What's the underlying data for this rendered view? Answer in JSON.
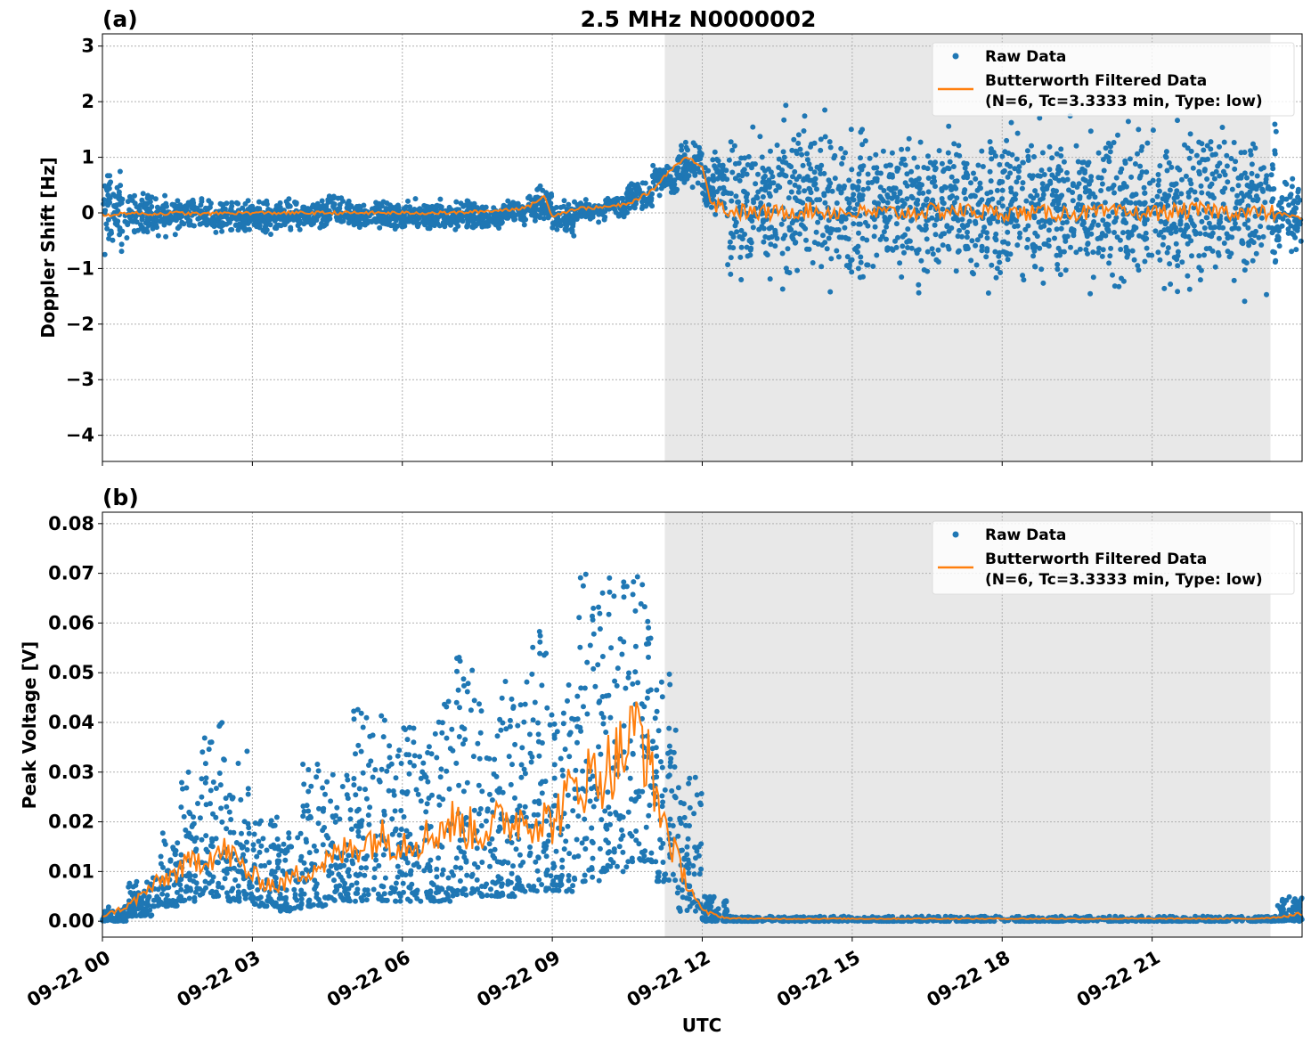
{
  "chart_data": [
    {
      "type": "scatter",
      "panel_label": "(a)",
      "title": "2.5 MHz N0000002",
      "ylabel": "Doppler Shift [Hz]",
      "xlabel": "",
      "xlim": [
        "09-22 00:00",
        "09-23 00:00"
      ],
      "ylim": [
        -4.47,
        3.22
      ],
      "yticks": [
        "3",
        "2",
        "1",
        "0",
        "−1",
        "−2",
        "−3",
        "−4"
      ],
      "ytick_values": [
        3,
        2,
        1,
        0,
        -1,
        -2,
        -3,
        -4
      ],
      "grid": true,
      "legend": {
        "placement": "top-right",
        "entries": [
          "Raw Data",
          "Butterworth Filtered Data",
          "(N=6, Tc=3.3333 min, Type: low)"
        ]
      },
      "shaded_span": [
        "09-22 11:15",
        "09-22 23:22"
      ],
      "series": [
        {
          "name": "Raw Data",
          "color": "#1f77b4",
          "kind": "points",
          "x": [
            "00:00",
            "00:30",
            "01:00",
            "01:30",
            "02:00",
            "02:30",
            "03:00",
            "03:30",
            "04:00",
            "04:30",
            "05:00",
            "05:30",
            "06:00",
            "06:30",
            "07:00",
            "07:30",
            "08:00",
            "08:30",
            "09:00",
            "09:30",
            "10:00",
            "10:30",
            "11:00",
            "11:30",
            "12:00",
            "12:30",
            "13:00",
            "13:30",
            "14:00",
            "14:30",
            "15:00",
            "15:30",
            "16:00",
            "16:30",
            "17:00",
            "17:30",
            "18:00",
            "18:30",
            "19:00",
            "19:30",
            "20:00",
            "20:30",
            "21:00",
            "21:30",
            "22:00",
            "22:30",
            "23:00",
            "23:30"
          ],
          "low": [
            -1.0,
            -0.5,
            -0.5,
            -0.4,
            -0.4,
            -0.4,
            -0.5,
            -0.4,
            -0.4,
            -0.4,
            -0.4,
            -0.4,
            -0.4,
            -0.4,
            -0.4,
            -0.4,
            -0.3,
            -0.3,
            -0.5,
            -0.2,
            -0.2,
            0.0,
            0.2,
            0.4,
            -0.3,
            -1.6,
            -1.7,
            -1.8,
            -1.7,
            -1.8,
            -1.7,
            -1.7,
            -1.7,
            -1.7,
            -1.8,
            -1.8,
            -1.8,
            -1.8,
            -1.9,
            -1.7,
            -1.8,
            -1.8,
            -1.7,
            -1.7,
            -1.7,
            -1.7,
            -1.6,
            -1.0
          ],
          "high": [
            1.0,
            0.5,
            0.4,
            0.4,
            0.3,
            0.3,
            0.3,
            0.3,
            0.3,
            0.4,
            0.3,
            0.3,
            0.3,
            0.3,
            0.3,
            0.3,
            0.3,
            0.6,
            0.3,
            0.3,
            0.4,
            0.6,
            1.0,
            1.4,
            1.4,
            1.8,
            1.9,
            2.2,
            2.2,
            1.9,
            2.0,
            2.0,
            2.0,
            1.9,
            1.9,
            2.0,
            2.0,
            2.0,
            2.0,
            1.9,
            2.0,
            1.9,
            1.9,
            1.9,
            2.0,
            1.9,
            1.8,
            0.9
          ]
        },
        {
          "name": "Butterworth Filtered Data",
          "color": "#ff7f0e",
          "kind": "line",
          "x": [
            "00:00",
            "00:30",
            "01:00",
            "01:30",
            "02:00",
            "02:30",
            "03:00",
            "03:30",
            "04:00",
            "04:30",
            "05:00",
            "05:30",
            "06:00",
            "06:30",
            "07:00",
            "07:30",
            "08:00",
            "08:30",
            "08:50",
            "09:00",
            "09:30",
            "10:00",
            "10:30",
            "11:00",
            "11:20",
            "11:40",
            "12:00",
            "12:10",
            "12:30",
            "13:00",
            "13:30",
            "14:00",
            "15:00",
            "16:00",
            "17:00",
            "18:00",
            "19:00",
            "20:00",
            "21:00",
            "22:00",
            "23:00",
            "23:30",
            "24:00"
          ],
          "y": [
            -0.05,
            0.0,
            -0.02,
            0.0,
            -0.02,
            0.0,
            0.0,
            0.0,
            0.0,
            0.0,
            0.0,
            0.0,
            0.0,
            0.0,
            0.0,
            0.02,
            0.05,
            0.1,
            0.3,
            -0.05,
            0.08,
            0.1,
            0.15,
            0.4,
            0.75,
            1.0,
            0.85,
            0.2,
            0.05,
            0.0,
            0.0,
            0.05,
            0.0,
            0.0,
            0.05,
            0.0,
            0.0,
            0.0,
            0.0,
            0.05,
            0.0,
            0.0,
            -0.1
          ]
        }
      ]
    },
    {
      "type": "scatter",
      "panel_label": "(b)",
      "ylabel": "Peak Voltage [V]",
      "xlabel": "UTC",
      "xlim": [
        "09-22 00:00",
        "09-23 00:00"
      ],
      "ylim": [
        -0.0032,
        0.0823
      ],
      "yticks": [
        "0.08",
        "0.07",
        "0.06",
        "0.05",
        "0.04",
        "0.03",
        "0.02",
        "0.01",
        "0.00"
      ],
      "ytick_values": [
        0.08,
        0.07,
        0.06,
        0.05,
        0.04,
        0.03,
        0.02,
        0.01,
        0.0
      ],
      "xticks": [
        "09-22 00",
        "09-22 03",
        "09-22 06",
        "09-22 09",
        "09-22 12",
        "09-22 15",
        "09-22 18",
        "09-22 21"
      ],
      "xtick_values": [
        "00:00",
        "03:00",
        "06:00",
        "09:00",
        "12:00",
        "15:00",
        "18:00",
        "21:00"
      ],
      "grid": true,
      "legend": {
        "placement": "top-right",
        "entries": [
          "Raw Data",
          "Butterworth Filtered Data",
          "(N=6, Tc=3.3333 min, Type: low)"
        ]
      },
      "shaded_span": [
        "09-22 11:15",
        "09-22 23:22"
      ],
      "series": [
        {
          "name": "Raw Data",
          "color": "#1f77b4",
          "kind": "points",
          "x": [
            "00:00",
            "00:30",
            "01:00",
            "01:30",
            "02:00",
            "02:30",
            "03:00",
            "03:30",
            "04:00",
            "04:30",
            "05:00",
            "05:30",
            "06:00",
            "06:30",
            "07:00",
            "07:30",
            "08:00",
            "08:30",
            "09:00",
            "09:30",
            "10:00",
            "10:30",
            "11:00",
            "11:30",
            "12:00",
            "12:30",
            "13:00",
            "14:00",
            "15:00",
            "16:00",
            "17:00",
            "18:00",
            "19:00",
            "20:00",
            "21:00",
            "22:00",
            "23:00",
            "23:30"
          ],
          "low": [
            0.0,
            0.001,
            0.003,
            0.004,
            0.005,
            0.004,
            0.003,
            0.002,
            0.003,
            0.004,
            0.004,
            0.004,
            0.004,
            0.004,
            0.005,
            0.005,
            0.005,
            0.006,
            0.006,
            0.008,
            0.01,
            0.012,
            0.008,
            0.002,
            0.0,
            0.0,
            0.0,
            0.0,
            0.0,
            0.0,
            0.0,
            0.0,
            0.0,
            0.0,
            0.0,
            0.0,
            0.0,
            0.0
          ],
          "high": [
            0.003,
            0.008,
            0.018,
            0.03,
            0.04,
            0.036,
            0.022,
            0.018,
            0.035,
            0.03,
            0.045,
            0.042,
            0.04,
            0.045,
            0.055,
            0.048,
            0.05,
            0.06,
            0.048,
            0.07,
            0.072,
            0.078,
            0.05,
            0.03,
            0.005,
            0.001,
            0.001,
            0.001,
            0.001,
            0.001,
            0.001,
            0.001,
            0.001,
            0.001,
            0.001,
            0.001,
            0.001,
            0.005
          ]
        },
        {
          "name": "Butterworth Filtered Data",
          "color": "#ff7f0e",
          "kind": "line",
          "x": [
            "00:00",
            "00:30",
            "01:00",
            "01:30",
            "02:00",
            "02:30",
            "03:00",
            "03:30",
            "04:00",
            "04:30",
            "05:00",
            "05:30",
            "06:00",
            "06:30",
            "07:00",
            "07:30",
            "08:00",
            "08:30",
            "09:00",
            "09:30",
            "10:00",
            "10:30",
            "10:45",
            "11:00",
            "11:30",
            "12:00",
            "12:30",
            "13:00",
            "15:00",
            "18:00",
            "21:00",
            "23:00",
            "23:30",
            "24:00"
          ],
          "y": [
            0.001,
            0.003,
            0.007,
            0.01,
            0.013,
            0.014,
            0.009,
            0.007,
            0.01,
            0.012,
            0.015,
            0.017,
            0.016,
            0.017,
            0.02,
            0.018,
            0.02,
            0.021,
            0.02,
            0.028,
            0.03,
            0.035,
            0.04,
            0.028,
            0.012,
            0.002,
            0.0006,
            0.0005,
            0.0005,
            0.0005,
            0.0005,
            0.0005,
            0.0008,
            0.0015
          ]
        }
      ]
    }
  ]
}
